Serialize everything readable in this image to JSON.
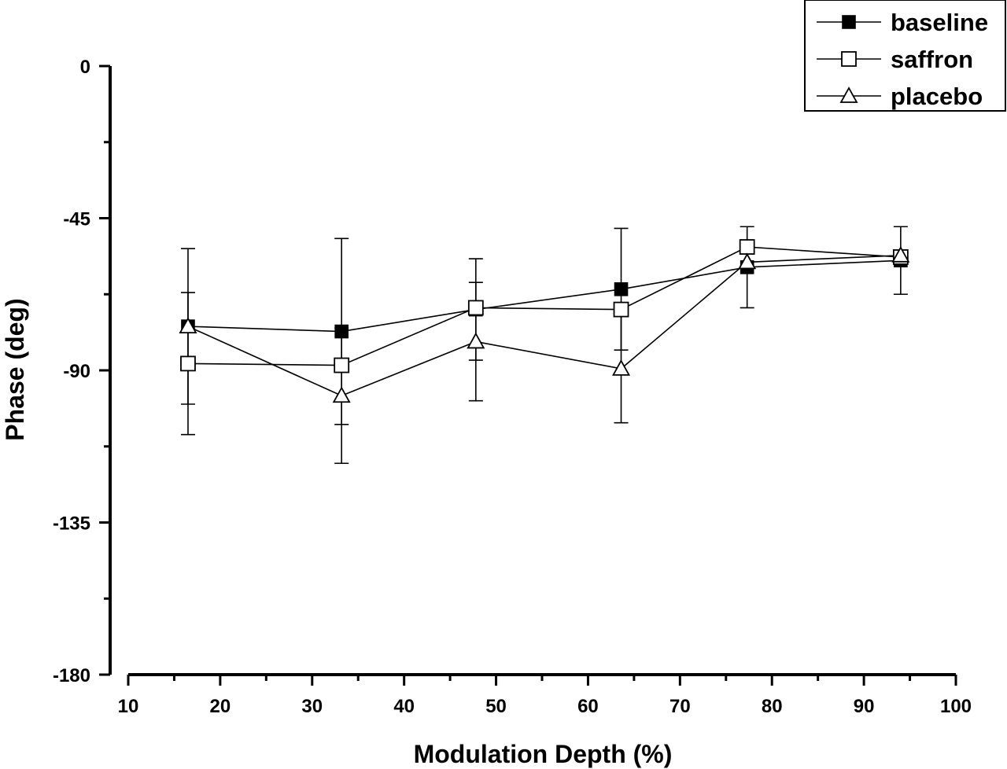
{
  "chart_data": {
    "type": "line",
    "title": "",
    "xlabel": "Modulation Depth (%)",
    "ylabel": "Phase (deg)",
    "xlim": [
      10,
      100
    ],
    "ylim": [
      -180,
      0
    ],
    "x_ticks": [
      10,
      20,
      30,
      40,
      50,
      60,
      70,
      80,
      90,
      100
    ],
    "x_tick_labels": [
      "10",
      "20",
      "30",
      "40",
      "50",
      "60",
      "70",
      "80",
      "90",
      "100"
    ],
    "y_ticks": [
      0,
      -45,
      -90,
      -135,
      -180
    ],
    "y_tick_labels": [
      "0",
      "-45",
      "-90",
      "-135",
      "-180"
    ],
    "grid": false,
    "legend_position": "top-right",
    "series": [
      {
        "name": "baseline",
        "marker": "filled-square",
        "x": [
          16.5,
          33.2,
          47.8,
          63.6,
          77.3,
          94.0
        ],
        "y": [
          -77,
          -78.5,
          -72,
          -66,
          -59.5,
          -57.5
        ],
        "err": [
          23,
          27.5,
          15,
          18,
          12,
          10
        ]
      },
      {
        "name": "saffron",
        "marker": "open-square",
        "x": [
          16.5,
          33.2,
          47.8,
          63.6,
          77.3,
          94.0
        ],
        "y": [
          -88,
          -88.5,
          -71.5,
          -72,
          -53.5,
          -56.5
        ],
        "err": [
          21,
          0,
          0,
          0,
          0,
          0
        ]
      },
      {
        "name": "placebo",
        "marker": "open-triangle",
        "x": [
          16.5,
          33.2,
          47.8,
          63.6,
          77.3,
          94.0
        ],
        "y": [
          -77,
          -97.5,
          -81.5,
          -89.5,
          -58,
          -56
        ],
        "err": [
          0,
          20,
          17.5,
          16,
          0,
          0
        ]
      }
    ]
  }
}
